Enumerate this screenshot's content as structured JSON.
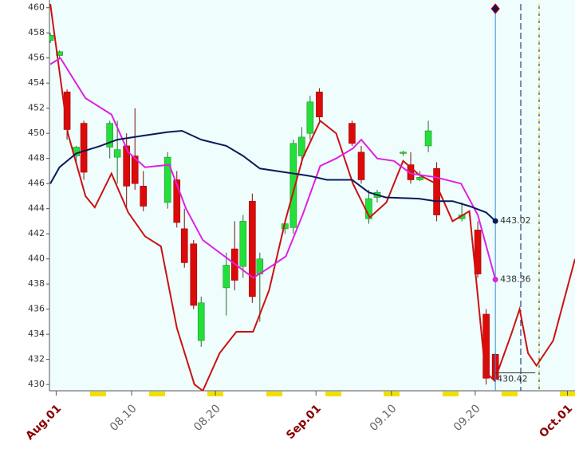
{
  "chart_data": {
    "type": "candlestick",
    "xlim": [
      0.2,
      62.9
    ],
    "ylim": [
      429.5,
      460.3
    ],
    "yticks": [
      430,
      432,
      434,
      436,
      438,
      440,
      442,
      444,
      446,
      448,
      450,
      452,
      454,
      456,
      458,
      460
    ],
    "xticks": [
      {
        "value": 1,
        "label": "Aug.01"
      },
      {
        "value": 10,
        "label": "08.10"
      },
      {
        "value": 20,
        "label": "08.20"
      },
      {
        "value": 32,
        "label": "Sep.01"
      },
      {
        "value": 41,
        "label": "09.10"
      },
      {
        "value": 51,
        "label": "09.20"
      },
      {
        "value": 62,
        "label": "Oct.01"
      }
    ],
    "up_color": "#22e03a",
    "down_color": "#dd0a0a",
    "x": [
      0.3,
      1.4,
      2.3,
      3.4,
      4.3,
      7.4,
      8.3,
      9.4,
      10.4,
      11.4,
      14.3,
      15.4,
      16.3,
      17.4,
      18.3,
      21.3,
      22.3,
      23.3,
      24.4,
      25.3,
      28.3,
      29.3,
      30.3,
      31.3,
      32.4,
      36.3,
      37.4,
      38.3,
      39.3,
      42.4,
      43.3,
      44.4,
      45.4,
      46.4,
      49.4,
      51.3,
      52.3,
      53.4
    ],
    "open": [
      457.4,
      456.2,
      453.3,
      448.2,
      450.8,
      448.9,
      448.1,
      449,
      448.2,
      445.8,
      444.5,
      446.3,
      442.4,
      441.2,
      433.5,
      437.7,
      440.8,
      439.4,
      444.6,
      438.8,
      442.4,
      442.5,
      448.2,
      450,
      453.3,
      450.8,
      448.5,
      443.2,
      444.9,
      448.4,
      447.5,
      446.3,
      449,
      447.2,
      443.2,
      442.3,
      435.6,
      432.4
    ],
    "high": [
      458,
      456.6,
      453.5,
      449,
      451,
      451,
      451,
      450,
      452,
      447,
      448.5,
      447,
      444,
      441.5,
      437,
      440.5,
      443,
      443.5,
      445.2,
      440.5,
      443,
      449.5,
      450.5,
      453,
      453.6,
      451,
      449,
      445.5,
      445.5,
      448.6,
      448.5,
      447,
      451,
      447.7,
      444.5,
      443,
      436,
      432.5
    ],
    "low": [
      457.2,
      456,
      449.5,
      447.5,
      446.3,
      448,
      446,
      444,
      445.5,
      443.8,
      444,
      442.5,
      439.3,
      436,
      433,
      435.5,
      437.5,
      438.5,
      436.5,
      435,
      442,
      442,
      447.5,
      449.5,
      451,
      449,
      446,
      442.8,
      444.5,
      448.2,
      446,
      446.2,
      448.5,
      443,
      443,
      438.5,
      430,
      430.2
    ],
    "close": [
      457.8,
      456.5,
      450.3,
      448.9,
      446.9,
      450.8,
      448.7,
      445.8,
      446,
      444.2,
      448.1,
      442.9,
      439.7,
      436.3,
      436.5,
      439.5,
      438.3,
      443,
      437,
      440,
      442.8,
      449.2,
      449.7,
      452.5,
      451.3,
      449.2,
      446.3,
      444.8,
      445.3,
      448.5,
      446.3,
      446.5,
      450.2,
      443.5,
      443.5,
      438.8,
      430.5,
      430.42
    ],
    "overlays": [
      {
        "color": "#cc1111",
        "x": [
          0.3,
          2.4,
          4.5,
          5.6,
          7.6,
          9.6,
          11.6,
          13.5,
          15.4,
          17.5,
          18.5,
          20.5,
          22.5,
          24.5,
          26.4,
          28.4,
          30.4,
          32.5,
          34.4,
          36.4,
          38.4,
          40.4,
          42.4,
          44.3,
          46.3,
          48.3,
          50.3,
          52.2,
          53.3,
          55.3,
          56.3,
          57.3,
          58.3,
          60.3,
          62.9
        ],
        "values": [
          460.3,
          450,
          445,
          444.1,
          446.8,
          443.7,
          441.8,
          441,
          434.5,
          430,
          429.5,
          432.5,
          434.2,
          434.2,
          437.5,
          443.2,
          448,
          451,
          450,
          446,
          443.3,
          444.5,
          447.8,
          446.7,
          446,
          443,
          443.8,
          431,
          430.3,
          434,
          436,
          432.5,
          431.5,
          433.5,
          440
        ]
      },
      {
        "color": "#e020e0",
        "x": [
          0.3,
          1.5,
          4.5,
          7.6,
          9.6,
          11.6,
          14.5,
          16.5,
          18.5,
          20.5,
          22.5,
          24.5,
          26.4,
          28.4,
          30.4,
          32.5,
          34.4,
          36.4,
          37.4,
          39.3,
          41.3,
          43.3,
          46.3,
          49.3,
          51.3,
          53.4
        ],
        "values": [
          455.5,
          456,
          452.8,
          451.5,
          448.5,
          447.3,
          447.5,
          444,
          441.5,
          440.5,
          439.5,
          438.5,
          439.3,
          440.2,
          443.5,
          447.4,
          448,
          448.8,
          449.5,
          448,
          447.8,
          446.8,
          446.5,
          446,
          443.5,
          438.36
        ]
      },
      {
        "color": "#0a1a5a",
        "x": [
          0.3,
          1.4,
          3.4,
          6.3,
          8.3,
          11.3,
          14.3,
          16.0,
          18.3,
          21.3,
          23.3,
          25.3,
          28.3,
          31.3,
          33.3,
          36.3,
          38.3,
          40.3,
          44.3,
          46.3,
          48.3,
          50.3,
          52.3,
          53.4
        ],
        "values": [
          446,
          447.3,
          448.4,
          449,
          449.5,
          449.8,
          450.1,
          450.2,
          449.5,
          449,
          448.2,
          447.2,
          446.9,
          446.6,
          446.3,
          446.3,
          445.3,
          444.9,
          444.8,
          444.6,
          444.6,
          444.2,
          443.7,
          443.02
        ]
      }
    ]
  }
}
